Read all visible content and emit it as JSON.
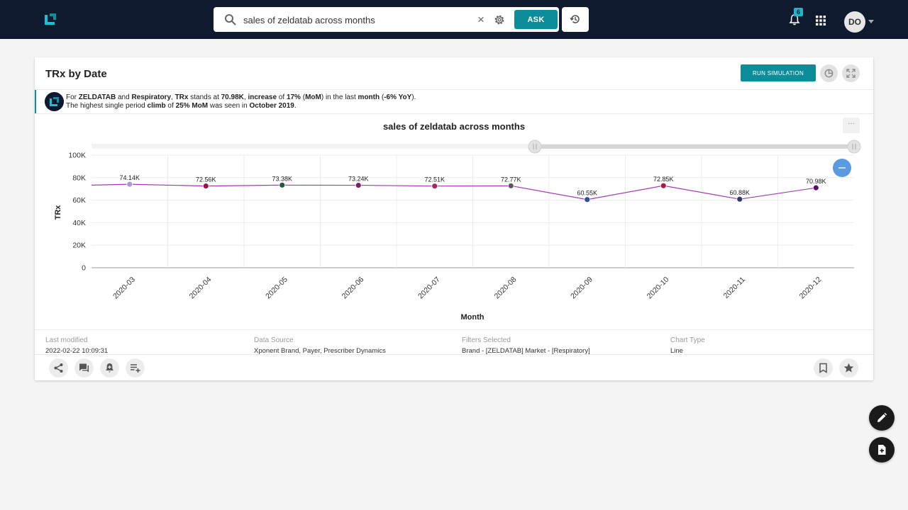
{
  "header": {
    "search": {
      "value": "sales of zeldatab across months",
      "placeholder": "",
      "ask_label": "ASK"
    },
    "notifications": {
      "count": "6"
    },
    "user": {
      "initials": "DO"
    }
  },
  "card": {
    "title": "TRx by Date",
    "run_simulation_label": "RUN SIMULATION",
    "insight": {
      "line1": [
        {
          "t": "For ",
          "b": false
        },
        {
          "t": "ZELDATAB",
          "b": true
        },
        {
          "t": " and ",
          "b": false
        },
        {
          "t": "Respiratory",
          "b": true
        },
        {
          "t": ", ",
          "b": false
        },
        {
          "t": "TRx",
          "b": true
        },
        {
          "t": " stands at ",
          "b": false
        },
        {
          "t": "70.98K",
          "b": true
        },
        {
          "t": ", ",
          "b": false
        },
        {
          "t": "increase",
          "b": true
        },
        {
          "t": " of ",
          "b": false
        },
        {
          "t": "17%",
          "b": true
        },
        {
          "t": " (",
          "b": false
        },
        {
          "t": "MoM",
          "b": true
        },
        {
          "t": ") in the last ",
          "b": false
        },
        {
          "t": "month",
          "b": true
        },
        {
          "t": " (",
          "b": false
        },
        {
          "t": "-6% YoY",
          "b": true
        },
        {
          "t": ").",
          "b": false
        }
      ],
      "line2": [
        {
          "t": "The highest single period ",
          "b": false
        },
        {
          "t": "climb",
          "b": true
        },
        {
          "t": " of ",
          "b": false
        },
        {
          "t": "25% MoM",
          "b": true
        },
        {
          "t": " was seen in ",
          "b": false
        },
        {
          "t": "October 2019",
          "b": true
        },
        {
          "t": ".",
          "b": false
        }
      ]
    },
    "more_label": "···",
    "meta": {
      "last_modified_label": "Last modified",
      "last_modified_value": "2022-02-22 10:09:31",
      "data_source_label": "Data Source",
      "data_source_value": "Xponent Brand, Payer, Prescriber Dynamics",
      "filters_label": "Filters Selected",
      "filters_value": "Brand - [ZELDATAB] Market - [Respiratory]",
      "chart_type_label": "Chart Type",
      "chart_type_value": "Line"
    }
  },
  "chart_data": {
    "type": "line",
    "title": "sales of zeldatab across months",
    "xlabel": "Month",
    "ylabel": "TRx",
    "categories": [
      "2020-03",
      "2020-04",
      "2020-05",
      "2020-06",
      "2020-07",
      "2020-08",
      "2020-09",
      "2020-10",
      "2020-11",
      "2020-12"
    ],
    "series": [
      {
        "values": [
          74140,
          72560,
          73380,
          73240,
          72510,
          72770,
          60550,
          72850,
          60880,
          70980
        ],
        "labels": [
          "74.14K",
          "72.56K",
          "73.38K",
          "73.24K",
          "72.51K",
          "72.77K",
          "60.55K",
          "72.85K",
          "60.88K",
          "70.98K"
        ]
      }
    ],
    "yticks": [
      "0",
      "20K",
      "40K",
      "60K",
      "80K",
      "100K"
    ],
    "ylim": [
      0,
      100000
    ],
    "grid": true,
    "line_color": "#a23bb0",
    "point_colors": [
      "#a99ad6",
      "#9e1148",
      "#1e5b3c",
      "#7c1f69",
      "#a52560",
      "#5a5a5a",
      "#2f4f93",
      "#a81d3e",
      "#2c3e5c",
      "#5e0e6b"
    ]
  },
  "colors": {
    "accent": "#0d8d99",
    "topbar": "#0f1a2e"
  }
}
